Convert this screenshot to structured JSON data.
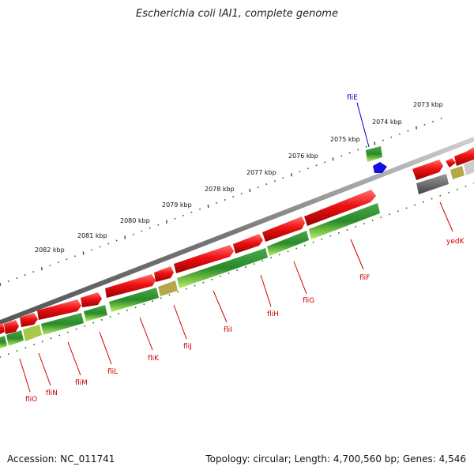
{
  "title": "Escherichia coli IAI1, complete genome",
  "footer": {
    "accession": "Accession: NC_011741",
    "summary": "Topology: circular; Length: 4,700,560 bp; Genes: 4,546"
  },
  "ruler": {
    "labels": [
      "2073 kbp",
      "2074 kbp",
      "2075 kbp",
      "2076 kbp",
      "2077 kbp",
      "2078 kbp",
      "2079 kbp",
      "2080 kbp",
      "2081 kbp",
      "2082 kbp"
    ]
  },
  "genes": {
    "fliE": "fliE",
    "yedK": "yedK",
    "fliF": "fliF",
    "fliG": "fliG",
    "fliH": "fliH",
    "fliI": "fliI",
    "fliJ": "fliJ",
    "fliK": "fliK",
    "fliL": "fliL",
    "fliM": "fliM",
    "fliN": "fliN",
    "fliO": "fliO"
  },
  "colors": {
    "cds_forward": "#ee1111",
    "cds_reverse": "#2a8a2a",
    "cds_reverse_light": "#a8e84a",
    "highlight": "#1111dd",
    "pseudo": "#666666",
    "pale": "#b5a84a",
    "backbone": "#888888",
    "ruler_tick": "#1c7a1c"
  }
}
